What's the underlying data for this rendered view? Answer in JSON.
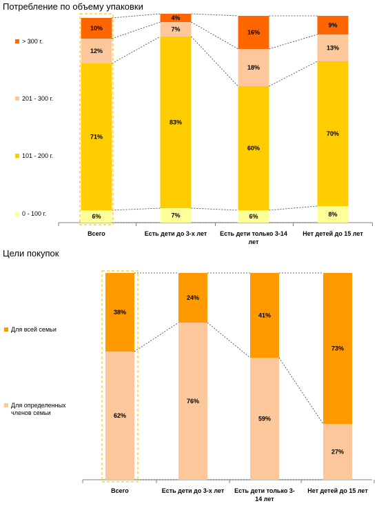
{
  "chart_data": [
    {
      "type": "stacked-bar",
      "title": "Потребление по объему упаковки",
      "categories": [
        "Всего",
        "Есть дети до 3-х лет",
        "Есть дети только 3-14 лет",
        "Нет детей до 15 лет"
      ],
      "category_lines": [
        [
          "Всего"
        ],
        [
          "Есть дети до 3-х лет"
        ],
        [
          "Есть дети только 3-14",
          "лет"
        ],
        [
          "Нет детей до 15 лет"
        ]
      ],
      "series": [
        {
          "name": "0 - 100 г.",
          "color": "#ffff99",
          "values": [
            6,
            7,
            6,
            8
          ],
          "labels": [
            "6%",
            "7%",
            "6%",
            "8%"
          ]
        },
        {
          "name": "101 - 200 г.",
          "color": "#ffcc00",
          "values": [
            71,
            83,
            60,
            70
          ],
          "labels": [
            "71%",
            "83%",
            "60%",
            "70%"
          ]
        },
        {
          "name": "201 - 300 г.",
          "color": "#fcc89b",
          "values": [
            12,
            7,
            18,
            13
          ],
          "labels": [
            "12%",
            "7%",
            "18%",
            "13%"
          ]
        },
        {
          "name": "> 300 г.",
          "color": "#ff6600",
          "values": [
            10,
            4,
            16,
            9
          ],
          "labels": [
            "10%",
            "4%",
            "16%",
            "9%"
          ]
        }
      ],
      "ylim": [
        0,
        100
      ],
      "highlighted_category": "Всего"
    },
    {
      "type": "stacked-bar",
      "title": "Цели покупок",
      "categories": [
        "Всего",
        "Есть дети до 3-х лет",
        "Есть дети только 3-14 лет",
        "Нет детей до 15 лет"
      ],
      "category_lines": [
        [
          "Всего"
        ],
        [
          "Есть дети до 3-х лет"
        ],
        [
          "Есть дети только 3-",
          "14 лет"
        ],
        [
          "Нет детей до 15 лет"
        ]
      ],
      "series": [
        {
          "name": "Для определенных членов семьи",
          "name_lines": [
            "Для определенных",
            "членов семьи"
          ],
          "color": "#fcc89b",
          "values": [
            62,
            76,
            59,
            27
          ],
          "labels": [
            "62%",
            "76%",
            "59%",
            "27%"
          ]
        },
        {
          "name": "Для всей семьи",
          "color": "#ff9900",
          "values": [
            38,
            24,
            41,
            73
          ],
          "labels": [
            "38%",
            "24%",
            "41%",
            "73%"
          ]
        }
      ],
      "ylim": [
        0,
        100
      ],
      "highlighted_category": "Всего"
    }
  ]
}
